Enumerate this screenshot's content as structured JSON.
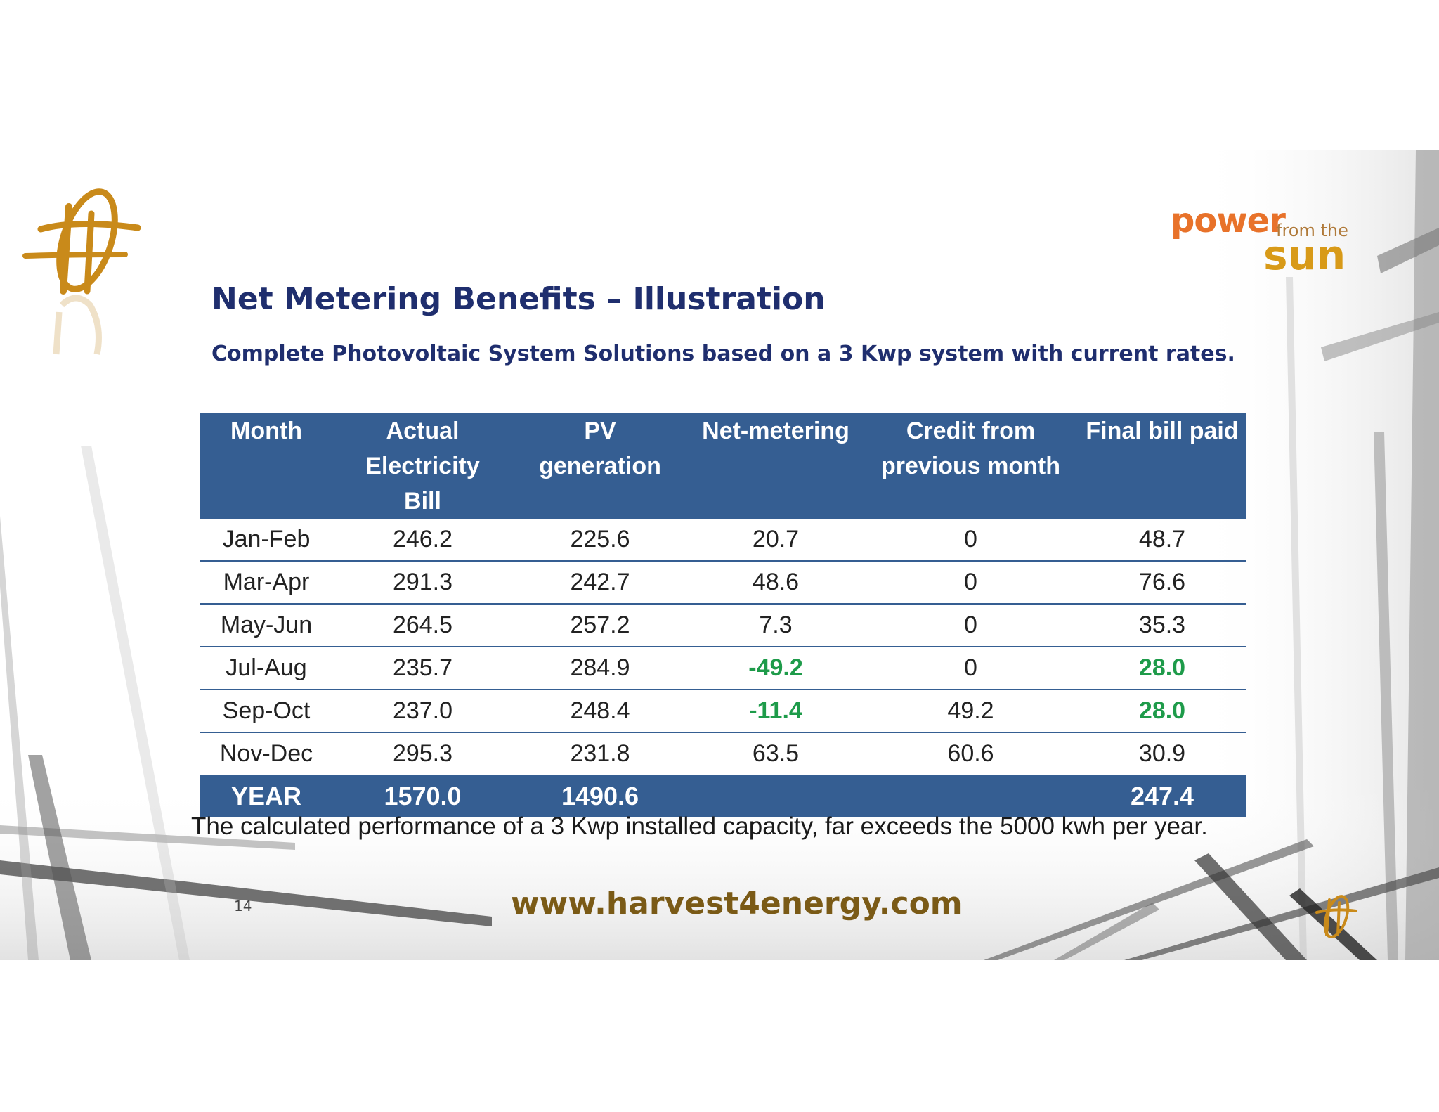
{
  "header": {
    "brand_power": "power",
    "brand_fromthe": "from the",
    "brand_sun": "sun",
    "title": "Net Metering Benefits – Illustration",
    "subtitle": "Complete Photovoltaic System Solutions based on a 3 Kwp system with current rates."
  },
  "table": {
    "headers": [
      [
        "Month",
        ""
      ],
      [
        "Actual Electricity",
        "Bill"
      ],
      [
        "PV",
        "generation"
      ],
      [
        "Net-metering",
        ""
      ],
      [
        "Credit from",
        "previous month"
      ],
      [
        "Final bill paid",
        ""
      ]
    ],
    "rows": [
      {
        "month": "Jan-Feb",
        "bill": "246.2",
        "pv": "225.6",
        "net": "20.7",
        "credit": "0",
        "final": "48.7"
      },
      {
        "month": "Mar-Apr",
        "bill": "291.3",
        "pv": "242.7",
        "net": "48.6",
        "credit": "0",
        "final": "76.6"
      },
      {
        "month": "May-Jun",
        "bill": "264.5",
        "pv": "257.2",
        "net": "7.3",
        "credit": "0",
        "final": "35.3"
      },
      {
        "month": "Jul-Aug",
        "bill": "235.7",
        "pv": "284.9",
        "net": "-49.2",
        "credit": "0",
        "final": "28.0"
      },
      {
        "month": "Sep-Oct",
        "bill": "237.0",
        "pv": "248.4",
        "net": "-11.4",
        "credit": "49.2",
        "final": "28.0"
      },
      {
        "month": "Nov-Dec",
        "bill": "295.3",
        "pv": "231.8",
        "net": "63.5",
        "credit": "60.6",
        "final": "30.9"
      }
    ],
    "total": {
      "label": "YEAR",
      "bill": "1570.0",
      "pv": "1490.6",
      "net": "",
      "credit": "",
      "final": "247.4"
    }
  },
  "note": "The calculated performance of a 3 Kwp installed capacity, far exceeds the 5000 kwh per year.",
  "footer": {
    "page_number": "14",
    "website": "www.harvest4energy.com"
  },
  "colors": {
    "header_bg": "#355e92",
    "title": "#1f2e6e",
    "highlight_green": "#1e9b4a",
    "website": "#7a5a16",
    "brand_orange": "#e8722a",
    "brand_gold": "#d89a18"
  }
}
